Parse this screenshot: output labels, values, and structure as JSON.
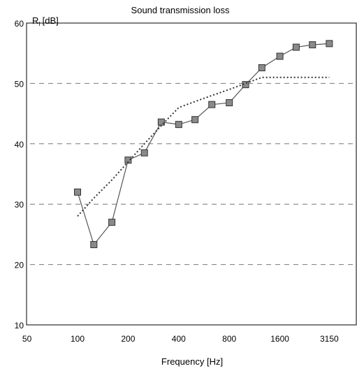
{
  "chart_data": {
    "type": "line",
    "title": "Sound transmission loss",
    "ylabel": "R",
    "ylabel_sub": "I",
    "ylabel_unit": "[dB]",
    "xlabel": "Frequency [Hz]",
    "ylim": [
      10,
      60
    ],
    "yticks": [
      "60",
      "50",
      "40",
      "30",
      "20",
      "10"
    ],
    "x_scale": "log (one-third octave bands)",
    "x": [
      100,
      125,
      160,
      200,
      250,
      315,
      400,
      500,
      630,
      800,
      1000,
      1250,
      1600,
      2000,
      2500,
      3150
    ],
    "xtick_labels": [
      "50",
      "100",
      "200",
      "400",
      "800",
      "1600",
      "3150"
    ],
    "grid": "horizontal dashed at 20, 30, 40, 50",
    "series": [
      {
        "style": "solid line with square markers",
        "color": "#555555",
        "marker_color": "#8a8a8a",
        "values": [
          32.0,
          23.3,
          27.0,
          37.3,
          38.5,
          43.6,
          43.2,
          44.0,
          46.5,
          46.8,
          49.8,
          52.6,
          54.5,
          56.0,
          56.4,
          56.6
        ]
      },
      {
        "style": "dotted line",
        "color": "#333333",
        "values": [
          28.0,
          31.0,
          34.0,
          37.0,
          40.0,
          43.0,
          46.0,
          47.0,
          48.0,
          49.0,
          50.0,
          51.0,
          51.0,
          51.0,
          51.0,
          51.0
        ]
      }
    ]
  }
}
